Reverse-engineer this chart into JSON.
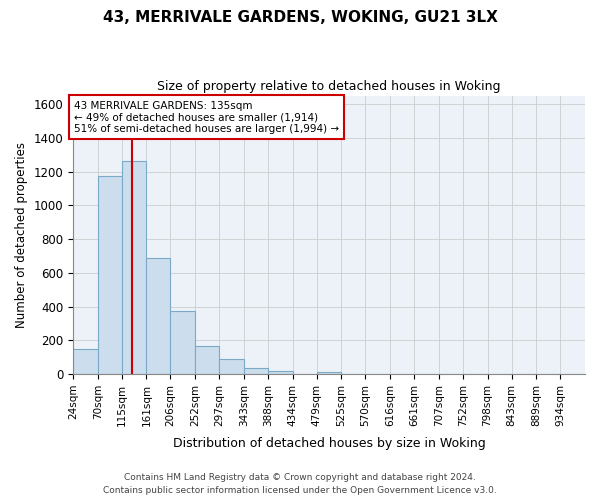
{
  "title1": "43, MERRIVALE GARDENS, WOKING, GU21 3LX",
  "title2": "Size of property relative to detached houses in Woking",
  "xlabel": "Distribution of detached houses by size in Woking",
  "ylabel": "Number of detached properties",
  "footnote1": "Contains HM Land Registry data © Crown copyright and database right 2024.",
  "footnote2": "Contains public sector information licensed under the Open Government Licence v3.0.",
  "bar_color": "#ccdded",
  "bar_edge_color": "#7aaac8",
  "grid_color": "#cccccc",
  "background_color": "#edf2f8",
  "vline_x": 135,
  "vline_color": "#cc0000",
  "annotation_line1": "43 MERRIVALE GARDENS: 135sqm",
  "annotation_line2": "← 49% of detached houses are smaller (1,914)",
  "annotation_line3": "51% of semi-detached houses are larger (1,994) →",
  "annotation_box_color": "#ffffff",
  "annotation_border_color": "#cc0000",
  "bin_edges": [
    24,
    70,
    115,
    161,
    206,
    252,
    297,
    343,
    388,
    434,
    479,
    525,
    570,
    616,
    661,
    707,
    752,
    798,
    843,
    889,
    934,
    980
  ],
  "bin_labels": [
    "24sqm",
    "70sqm",
    "115sqm",
    "161sqm",
    "206sqm",
    "252sqm",
    "297sqm",
    "343sqm",
    "388sqm",
    "434sqm",
    "479sqm",
    "525sqm",
    "570sqm",
    "616sqm",
    "661sqm",
    "707sqm",
    "752sqm",
    "798sqm",
    "843sqm",
    "889sqm",
    "934sqm"
  ],
  "values": [
    150,
    1175,
    1260,
    690,
    375,
    165,
    90,
    35,
    20,
    0,
    15,
    0,
    0,
    0,
    0,
    0,
    0,
    0,
    0,
    0,
    0
  ],
  "ylim": [
    0,
    1650
  ],
  "yticks": [
    0,
    200,
    400,
    600,
    800,
    1000,
    1200,
    1400,
    1600
  ]
}
